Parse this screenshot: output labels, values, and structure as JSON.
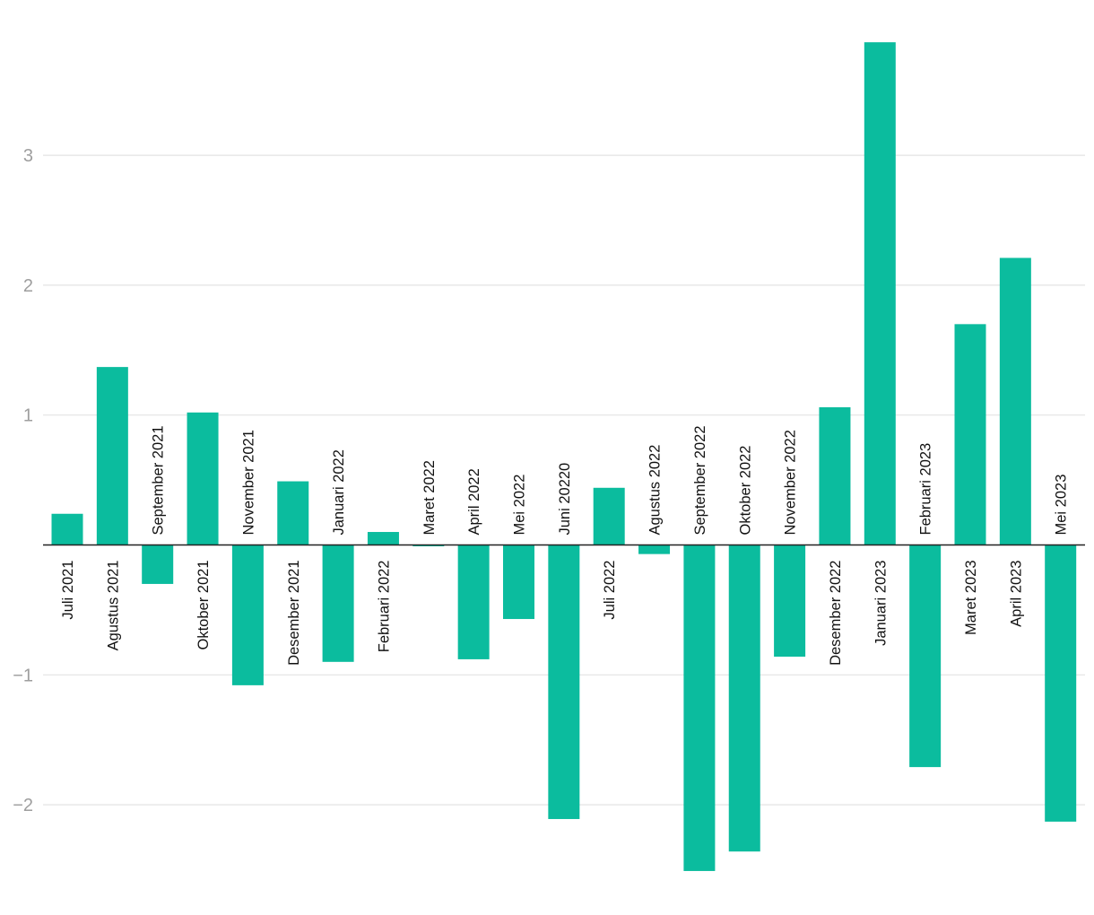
{
  "chart_data": {
    "type": "bar",
    "title": "",
    "xlabel": "",
    "ylabel": "",
    "ylim": [
      -2.55,
      3.9
    ],
    "yticks": [
      -2,
      -1,
      1,
      2,
      3
    ],
    "ytick_labels": [
      "−2",
      "−1",
      "1",
      "2",
      "3"
    ],
    "grid": true,
    "bar_color": "#0bbc9e",
    "categories": [
      "Juli 2021",
      "Agustus 2021",
      "September 2021",
      "Oktober 2021",
      "November 2021",
      "Desember 2021",
      "Januari 2022",
      "Februari 2022",
      "Maret 2022",
      "April 2022",
      "Mei 2022",
      "Juni 20220",
      "Juli 2022",
      "Agustus 2022",
      "September 2022",
      "Oktober 2022",
      "November 2022",
      "Desember 2022",
      "Januari 2023",
      "Februari 2023",
      "Maret 2023",
      "April 2023",
      "Mei 2023"
    ],
    "values": [
      0.24,
      1.37,
      -0.3,
      1.02,
      -1.08,
      0.49,
      -0.9,
      0.1,
      -0.01,
      -0.88,
      -0.57,
      -2.11,
      0.44,
      -0.07,
      -2.51,
      -2.36,
      -0.86,
      1.06,
      3.87,
      -1.71,
      1.7,
      2.21,
      -2.13
    ]
  }
}
